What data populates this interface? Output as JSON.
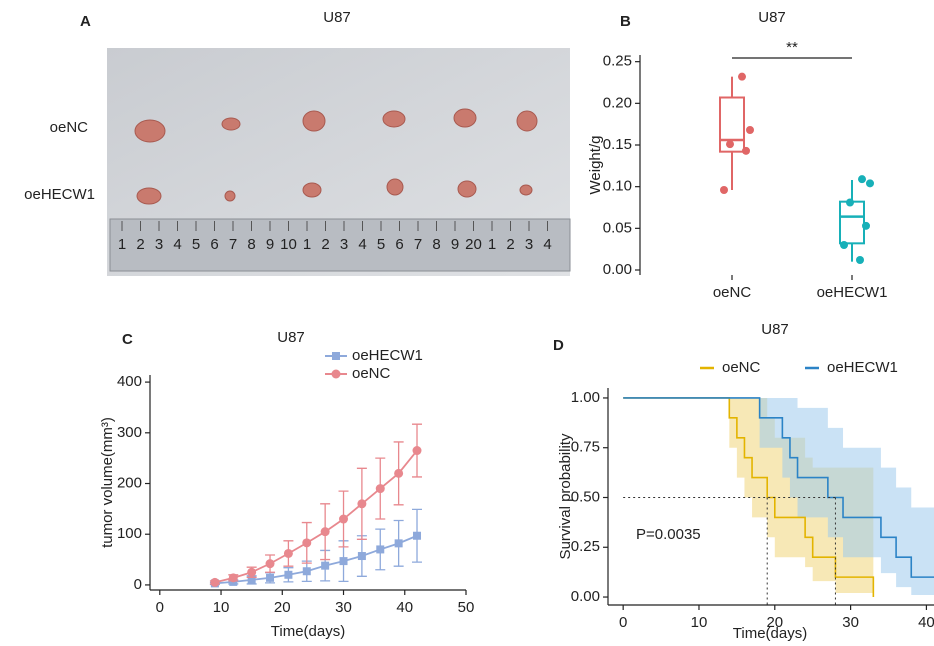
{
  "photo_panel": {
    "panel_label": "A",
    "title": "U87",
    "row_labels": [
      "oeNC",
      "oeHECW1"
    ],
    "ruler_labels": [
      "1",
      "2",
      "3",
      "4",
      "5",
      "6",
      "7",
      "8",
      "9",
      "10",
      "1",
      "2",
      "3",
      "4",
      "5",
      "6",
      "7",
      "8",
      "9",
      "20",
      "1",
      "2",
      "3",
      "4"
    ]
  },
  "chart_data": [
    {
      "type": "box",
      "panel_label": "B",
      "title": "U87",
      "y_label": "Weight/g",
      "categories": [
        "oeNC",
        "oeHECW1"
      ],
      "boxes": [
        {
          "color": "#e06666",
          "min": 0.096,
          "q1": 0.142,
          "median": 0.156,
          "q3": 0.207,
          "max": 0.232,
          "points": [
            0.232,
            0.168,
            0.151,
            0.143,
            0.096
          ]
        },
        {
          "color": "#17b0b8",
          "min": 0.01,
          "q1": 0.032,
          "median": 0.064,
          "q3": 0.082,
          "max": 0.108,
          "points": [
            0.109,
            0.104,
            0.081,
            0.053,
            0.03,
            0.012
          ]
        }
      ],
      "ylim": [
        -0.006,
        0.258
      ],
      "yticks": [
        {
          "value": 0,
          "label": "0.00"
        },
        {
          "value": 0.05,
          "label": "0.05"
        },
        {
          "value": 0.1,
          "label": "0.10"
        },
        {
          "value": 0.15,
          "label": "0.15"
        },
        {
          "value": 0.2,
          "label": "0.20"
        },
        {
          "value": 0.25,
          "label": "0.25"
        }
      ],
      "annotation": "**"
    },
    {
      "type": "line",
      "panel_label": "C",
      "title": "U87",
      "x_label": "Time(days)",
      "y_label": "tumor volume(mm³)",
      "x": [
        9,
        12,
        15,
        18,
        21,
        24,
        27,
        30,
        33,
        36,
        39,
        42
      ],
      "series": [
        {
          "name": "oeHECW1",
          "color": "#8ea9db",
          "marker": "square",
          "values": [
            3,
            6,
            10,
            14,
            20,
            27,
            38,
            47,
            57,
            70,
            82,
            97
          ],
          "errors": [
            2,
            4,
            8,
            10,
            14,
            20,
            30,
            40,
            40,
            40,
            45,
            52
          ]
        },
        {
          "name": "oeNC",
          "color": "#e8888e",
          "marker": "circle",
          "values": [
            5,
            14,
            25,
            42,
            62,
            83,
            105,
            130,
            160,
            190,
            220,
            265
          ],
          "errors": [
            3,
            6,
            10,
            17,
            25,
            40,
            55,
            55,
            70,
            60,
            62,
            52
          ]
        }
      ],
      "xlim": [
        -1.6,
        50
      ],
      "xticks": [
        0,
        10,
        20,
        30,
        40,
        50
      ],
      "ylim": [
        -10,
        414
      ],
      "yticks": [
        0,
        100,
        200,
        300,
        400
      ]
    },
    {
      "type": "step",
      "panel_label": "D",
      "title": "U87",
      "x_label": "Time(days)",
      "y_label": "Survival probability",
      "series": [
        {
          "name": "oeNC",
          "color": "#e3b400",
          "band_color": "#f0d57a",
          "x": [
            0,
            14,
            15,
            16,
            17,
            19,
            20,
            24,
            25,
            28,
            33
          ],
          "values": [
            1,
            0.9,
            0.8,
            0.7,
            0.6,
            0.5,
            0.4,
            0.3,
            0.2,
            0.1,
            0
          ],
          "upper": [
            1,
            1,
            1,
            1,
            1,
            0.9,
            0.8,
            0.7,
            0.65,
            0.65,
            0.65
          ],
          "lower": [
            1,
            0.75,
            0.6,
            0.5,
            0.4,
            0.3,
            0.2,
            0.15,
            0.08,
            0.02,
            0
          ]
        },
        {
          "name": "oeHECW1",
          "color": "#2b83c6",
          "band_color": "#9ecbec",
          "x": [
            0,
            18,
            21,
            22,
            23,
            27,
            29,
            34,
            36,
            38
          ],
          "values": [
            1,
            0.9,
            0.8,
            0.7,
            0.6,
            0.5,
            0.4,
            0.3,
            0.2,
            0.1
          ],
          "upper": [
            1,
            1,
            1,
            1,
            0.95,
            0.85,
            0.75,
            0.65,
            0.55,
            0.45
          ],
          "lower": [
            1,
            0.75,
            0.6,
            0.5,
            0.4,
            0.3,
            0.2,
            0.12,
            0.05,
            0.01
          ]
        }
      ],
      "reference_y": 0.5,
      "reference_x": [
        19,
        28
      ],
      "annotation": "P=0.0035",
      "xlim": [
        -2,
        41
      ],
      "xticks": [
        0,
        10,
        20,
        30,
        40
      ],
      "ylim": [
        -0.04,
        1.05
      ],
      "yticks": [
        {
          "value": 0,
          "label": "0.00"
        },
        {
          "value": 0.25,
          "label": "0.25"
        },
        {
          "value": 0.5,
          "label": "0.50"
        },
        {
          "value": 0.75,
          "label": "0.75"
        },
        {
          "value": 1,
          "label": "1.00"
        }
      ]
    }
  ]
}
